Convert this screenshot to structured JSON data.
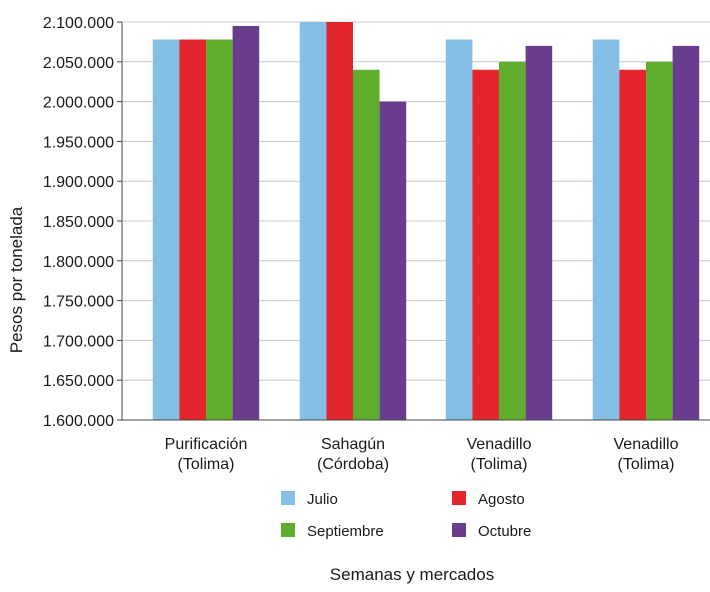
{
  "chart_data": {
    "type": "bar",
    "xlabel": "Semanas y mercados",
    "ylabel": "Pesos por tonelada",
    "ylim": [
      1600000,
      2100000
    ],
    "yticks": [
      1600000,
      1650000,
      1700000,
      1750000,
      1800000,
      1850000,
      1900000,
      1950000,
      2000000,
      2050000,
      2100000
    ],
    "ytick_labels": [
      "1.600.000",
      "1.650.000",
      "1.700.000",
      "1.750.000",
      "1.800.000",
      "1.850.000",
      "1.900.000",
      "1.950.000",
      "2.000.000",
      "2.050.000",
      "2.100.000"
    ],
    "grid": true,
    "legend_position": "bottom",
    "categories": [
      [
        "Purificación",
        "(Tolima)"
      ],
      [
        "Sahagún",
        "(Córdoba)"
      ],
      [
        "Venadillo",
        "(Tolima)"
      ],
      [
        "Venadillo",
        "(Tolima)"
      ]
    ],
    "series": [
      {
        "name": "Julio",
        "color": "#86bfe6",
        "values": [
          2078000,
          2100000,
          2078000,
          2078000
        ]
      },
      {
        "name": "Agosto",
        "color": "#e3262b",
        "values": [
          2078000,
          2100000,
          2040000,
          2040000
        ]
      },
      {
        "name": "Septiembre",
        "color": "#5ead2c",
        "values": [
          2078000,
          2040000,
          2050000,
          2050000
        ]
      },
      {
        "name": "Octubre",
        "color": "#6a3c8e",
        "values": [
          2095000,
          2000000,
          2070000,
          2070000
        ]
      }
    ]
  }
}
